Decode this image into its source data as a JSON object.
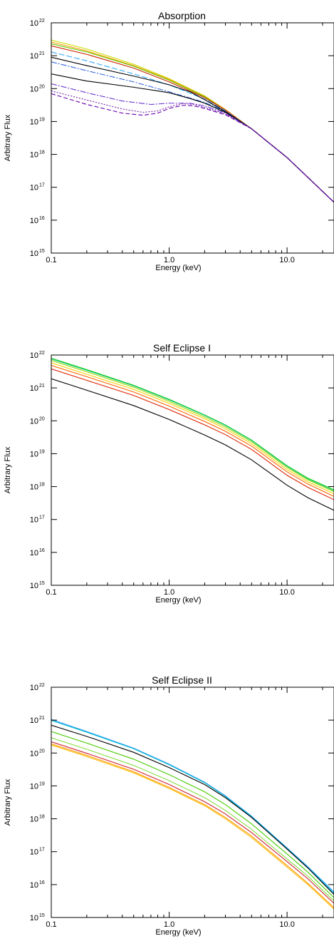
{
  "chart_data": [
    {
      "type": "line",
      "title": "Absorption",
      "xlabel": "Energy (keV)",
      "ylabel": "Arbitrary Flux",
      "xscale": "log",
      "yscale": "log",
      "xlim": [
        0.1,
        25
      ],
      "ylim": [
        1000000000000000.0,
        1e+22
      ],
      "xticklabels": [
        "0.1",
        "1.0",
        "10.0"
      ],
      "xtickvalues": [
        0.1,
        1,
        10
      ],
      "ytickbase": "10",
      "ytickexps": [
        "15",
        "16",
        "17",
        "18",
        "19",
        "20",
        "21",
        "22"
      ],
      "series": [
        {
          "color": "#ccdd00",
          "dash": "",
          "x": [
            0.1,
            0.2,
            0.5,
            1,
            2,
            3,
            5,
            10,
            25
          ],
          "y": [
            3e+21,
            1.6e+21,
            5.5e+20,
            2e+20,
            6e+19,
            2.3e+19,
            6e+18,
            8e+17,
            3.5e+16
          ]
        },
        {
          "color": "#ff9900",
          "dash": "",
          "x": [
            0.1,
            0.2,
            0.5,
            1,
            2,
            3,
            5,
            10,
            25
          ],
          "y": [
            2.6e+21,
            1.4e+21,
            5e+20,
            1.9e+20,
            5.8e+19,
            2.3e+19,
            6e+18,
            8e+17,
            3.5e+16
          ]
        },
        {
          "color": "#66cc00",
          "dash": "",
          "x": [
            0.1,
            0.2,
            0.5,
            1,
            2,
            3,
            5,
            10,
            25
          ],
          "y": [
            2.3e+21,
            1.3e+21,
            4.8e+20,
            1.8e+20,
            5.6e+19,
            2.2e+19,
            6e+18,
            8e+17,
            3.5e+16
          ]
        },
        {
          "color": "#cc2200",
          "dash": "",
          "x": [
            0.1,
            0.2,
            0.5,
            1,
            2,
            3,
            5,
            10,
            25
          ],
          "y": [
            2e+21,
            1.1e+21,
            4.2e+20,
            1.6e+20,
            5.3e+19,
            2.2e+19,
            6e+18,
            8e+17,
            3.5e+16
          ]
        },
        {
          "color": "#33aaff",
          "dash": "8,3",
          "x": [
            0.1,
            0.2,
            0.5,
            1,
            2,
            3,
            5,
            10,
            25
          ],
          "y": [
            1.3e+21,
            7e+20,
            2.8e+20,
            1.3e+20,
            4.8e+19,
            2.1e+19,
            6e+18,
            8e+17,
            3.5e+16
          ]
        },
        {
          "color": "#3366dd",
          "dash": "8,2,2,2",
          "x": [
            0.1,
            0.2,
            0.5,
            1,
            2,
            3,
            5,
            10,
            25
          ],
          "y": [
            6.5e+20,
            3.5e+20,
            1.6e+20,
            8e+19,
            3.8e+19,
            2e+19,
            6e+18,
            8e+17,
            3.5e+16
          ]
        },
        {
          "color": "#000000",
          "dash": "",
          "x": [
            0.1,
            0.2,
            0.5,
            0.8,
            1,
            1.5,
            2,
            3,
            5,
            10,
            25
          ],
          "y": [
            9e+20,
            5e+20,
            2.4e+20,
            1.6e+20,
            1.3e+20,
            8e+19,
            4.6e+19,
            2e+19,
            6e+18,
            8e+17,
            3.5e+16
          ]
        },
        {
          "color": "#000000",
          "dash": "",
          "x": [
            0.1,
            0.2,
            0.5,
            0.8,
            1,
            1.5,
            2,
            3,
            5,
            10,
            25
          ],
          "y": [
            2.8e+20,
            1.7e+20,
            1.1e+20,
            8.5e+19,
            7.5e+19,
            5e+19,
            3.6e+19,
            1.9e+19,
            6e+18,
            8e+17,
            3.5e+16
          ]
        },
        {
          "color": "#6633cc",
          "dash": "8,2,2,2",
          "x": [
            0.1,
            0.2,
            0.4,
            0.7,
            1,
            1.5,
            2,
            3,
            5,
            10,
            25
          ],
          "y": [
            1.4e+20,
            7.5e+19,
            4.2e+19,
            3.3e+19,
            3.6e+19,
            3.6e+19,
            3e+19,
            1.8e+19,
            6e+18,
            8e+17,
            3.5e+16
          ]
        },
        {
          "color": "#7722aa",
          "dash": "2,2",
          "x": [
            0.1,
            0.2,
            0.4,
            0.6,
            0.8,
            1,
            1.3,
            1.6,
            2,
            3,
            5,
            10,
            25
          ],
          "y": [
            8.5e+19,
            4.5e+19,
            2.4e+19,
            1.9e+19,
            2.1e+19,
            2.8e+19,
            3.5e+19,
            3.3e+19,
            2.7e+19,
            1.7e+19,
            6e+18,
            8e+17,
            3.5e+16
          ]
        },
        {
          "color": "#6600aa",
          "dash": "6,3",
          "x": [
            0.1,
            0.2,
            0.4,
            0.6,
            0.8,
            1,
            1.3,
            1.6,
            2,
            3,
            5,
            10,
            25
          ],
          "y": [
            7e+19,
            3.3e+19,
            1.8e+19,
            1.55e+19,
            1.8e+19,
            2.5e+19,
            3.1e+19,
            3e+19,
            2.5e+19,
            1.6e+19,
            6e+18,
            8e+17,
            3.5e+16
          ]
        }
      ]
    },
    {
      "type": "line",
      "title": "Self Eclipse I",
      "xlabel": "Energy (keV)",
      "ylabel": "Arbitrary Flux",
      "xscale": "log",
      "yscale": "log",
      "xlim": [
        0.1,
        25
      ],
      "ylim": [
        1000000000000000.0,
        1e+22
      ],
      "xticklabels": [
        "0.1",
        "1.0",
        "10.0"
      ],
      "xtickvalues": [
        0.1,
        1,
        10
      ],
      "ytickbase": "10",
      "ytickexps": [
        "15",
        "16",
        "17",
        "18",
        "19",
        "20",
        "21",
        "22"
      ],
      "series": [
        {
          "color": "#00cc00",
          "dash": "",
          "x": [
            0.1,
            0.2,
            0.5,
            1,
            2,
            3,
            5,
            10,
            15,
            25
          ],
          "y": [
            8e+21,
            3.6e+21,
            1.2e+21,
            4.5e+20,
            1.5e+20,
            7.5e+19,
            2.6e+19,
            4.3e+18,
            1.8e+18,
            8e+17
          ]
        },
        {
          "color": "#33cc99",
          "dash": "",
          "x": [
            0.1,
            0.2,
            0.5,
            1,
            2,
            3,
            5,
            10,
            15,
            25
          ],
          "y": [
            7.5e+21,
            3.4e+21,
            1.15e+21,
            4.3e+20,
            1.45e+20,
            7.2e+19,
            2.5e+19,
            4.1e+18,
            1.7e+18,
            7.5e+17
          ]
        },
        {
          "color": "#99dd00",
          "dash": "",
          "x": [
            0.1,
            0.2,
            0.5,
            1,
            2,
            3,
            5,
            10,
            15,
            25
          ],
          "y": [
            6.8e+21,
            3.1e+21,
            1.05e+21,
            3.9e+20,
            1.3e+20,
            6.5e+19,
            2.3e+19,
            3.8e+18,
            1.6e+18,
            7e+17
          ]
        },
        {
          "color": "#ffcc00",
          "dash": "",
          "x": [
            0.1,
            0.2,
            0.5,
            1,
            2,
            3,
            5,
            10,
            15,
            25
          ],
          "y": [
            5.8e+21,
            2.6e+21,
            9e+20,
            3.4e+20,
            1.15e+20,
            5.7e+19,
            2e+19,
            3.3e+18,
            1.4e+18,
            6e+17
          ]
        },
        {
          "color": "#ff6600",
          "dash": "",
          "x": [
            0.1,
            0.2,
            0.5,
            1,
            2,
            3,
            5,
            10,
            15,
            25
          ],
          "y": [
            4.8e+21,
            2.2e+21,
            7.5e+20,
            2.8e+20,
            9.5e+19,
            4.8e+19,
            1.7e+19,
            2.8e+18,
            1.2e+18,
            5e+17
          ]
        },
        {
          "color": "#dd2200",
          "dash": "",
          "x": [
            0.1,
            0.2,
            0.5,
            1,
            2,
            3,
            5,
            10,
            15,
            25
          ],
          "y": [
            3.8e+21,
            1.7e+21,
            5.9e+20,
            2.2e+20,
            7.5e+19,
            3.8e+19,
            1.35e+19,
            2.2e+18,
            9.5e+17,
            4e+17
          ]
        },
        {
          "color": "#000000",
          "dash": "",
          "x": [
            0.1,
            0.2,
            0.5,
            1,
            2,
            3,
            5,
            10,
            15,
            25
          ],
          "y": [
            1.9e+21,
            8.5e+20,
            2.9e+20,
            1.1e+20,
            3.7e+19,
            1.85e+19,
            6.5e+18,
            1.1e+18,
            4.6e+17,
            1.9e+17
          ]
        }
      ]
    },
    {
      "type": "line",
      "title": "Self Eclipse II",
      "xlabel": "Energy (keV)",
      "ylabel": "Arbitrary Flux",
      "xscale": "log",
      "yscale": "log",
      "xlim": [
        0.1,
        25
      ],
      "ylim": [
        1000000000000000.0,
        1e+22
      ],
      "xticklabels": [
        "0.1",
        "1.0",
        "10.0"
      ],
      "xtickvalues": [
        0.1,
        1,
        10
      ],
      "ytickbase": "10",
      "ytickexps": [
        "15",
        "16",
        "17",
        "18",
        "19",
        "20",
        "21",
        "22"
      ],
      "series": [
        {
          "color": "#3399ff",
          "dash": "",
          "x": [
            0.1,
            0.2,
            0.5,
            1,
            2,
            3,
            5,
            10,
            15,
            25
          ],
          "y": [
            1.05e+21,
            4.5e+20,
            1.4e+20,
            4.6e+19,
            1.3e+19,
            5e+18,
            1.2e+18,
            1.3e+17,
            3.5e+16,
            6000000000000000.0
          ]
        },
        {
          "color": "#00bbcc",
          "dash": "",
          "x": [
            0.1,
            0.2,
            0.5,
            1,
            2,
            3,
            5,
            10,
            15,
            25
          ],
          "y": [
            9.8e+20,
            4.3e+20,
            1.35e+20,
            4.4e+19,
            1.25e+19,
            4.8e+18,
            1.15e+18,
            1.25e+17,
            3.3e+16,
            5500000000000000.0
          ]
        },
        {
          "color": "#000000",
          "dash": "",
          "x": [
            0.1,
            0.2,
            0.5,
            1,
            2,
            3,
            5,
            10,
            15,
            25
          ],
          "y": [
            7e+20,
            3.2e+20,
            1.05e+20,
            3.6e+19,
            1.1e+19,
            4.4e+18,
            1.1e+18,
            1.2e+17,
            3.2e+16,
            5000000000000000.0
          ]
        },
        {
          "color": "#44cc00",
          "dash": "",
          "x": [
            0.1,
            0.2,
            0.5,
            1,
            2,
            3,
            5,
            10,
            15,
            25
          ],
          "y": [
            4.5e+20,
            2e+20,
            6.5e+19,
            2.2e+19,
            6.6e+18,
            2.7e+18,
            7e+17,
            8.5e+16,
            2.4e+16,
            4000000000000000.0
          ]
        },
        {
          "color": "#88dd44",
          "dash": "",
          "x": [
            0.1,
            0.2,
            0.5,
            1,
            2,
            3,
            5,
            10,
            15,
            25
          ],
          "y": [
            2.9e+20,
            1.3e+20,
            4.2e+19,
            1.45e+19,
            4.4e+18,
            1.8e+18,
            4.8e+17,
            6e+16,
            1.8e+16,
            3200000000000000.0
          ]
        },
        {
          "color": "#cc2233",
          "dash": "",
          "x": [
            0.1,
            0.2,
            0.5,
            1,
            2,
            3,
            5,
            10,
            15,
            25
          ],
          "y": [
            2.2e+20,
            9.8e+19,
            3.2e+19,
            1.1e+19,
            3.3e+18,
            1.4e+18,
            3.8e+17,
            5e+16,
            1.5e+16,
            2700000000000000.0
          ]
        },
        {
          "color": "#ff9900",
          "dash": "",
          "x": [
            0.1,
            0.2,
            0.5,
            1,
            2,
            3,
            5,
            10,
            15,
            25
          ],
          "y": [
            1.9e+20,
            8.5e+19,
            2.7e+19,
            9e+18,
            2.7e+18,
            1.1e+18,
            3e+17,
            3.8e+16,
            1.1e+16,
            2000000000000000.0
          ]
        },
        {
          "color": "#ffbb00",
          "dash": "",
          "x": [
            0.1,
            0.2,
            0.5,
            1,
            2,
            3,
            5,
            10,
            15,
            25
          ],
          "y": [
            1.75e+20,
            7.8e+19,
            2.5e+19,
            8.3e+18,
            2.5e+18,
            1e+18,
            2.7e+17,
            3.4e+16,
            1e+16,
            1800000000000000.0
          ]
        }
      ]
    }
  ]
}
